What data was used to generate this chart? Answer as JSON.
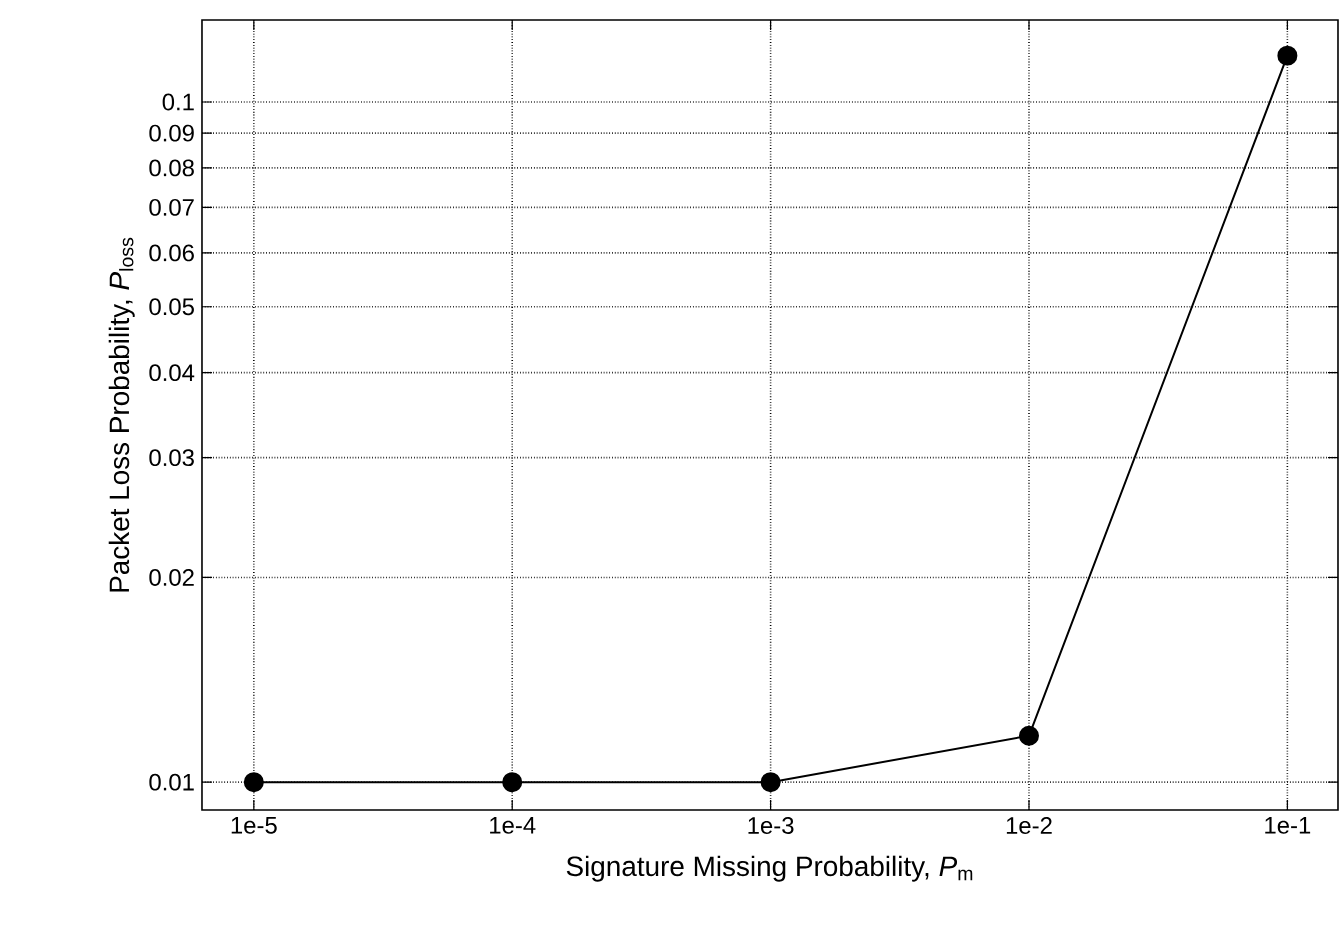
{
  "chart_data": {
    "type": "line",
    "xlabel": "Signature Missing Probability, *P*$_{m}$",
    "ylabel": "Packet Loss Probability, *P*$_{loss}$",
    "log": "xy",
    "grid": true,
    "marker": "circle",
    "line_style": "solid",
    "x": [
      1e-05,
      0.0001,
      0.001,
      0.01,
      0.1
    ],
    "series": [
      {
        "color": "#000000",
        "values": [
          0.01,
          0.01,
          0.01,
          0.0117,
          0.117
        ]
      }
    ],
    "xlim": [
      6.3e-06,
      0.157
    ],
    "ylim": [
      0.0091,
      0.132
    ],
    "xticks": [
      {
        "value": 1e-05,
        "label": "1e-5"
      },
      {
        "value": 0.0001,
        "label": "1e-4"
      },
      {
        "value": 0.001,
        "label": "1e-3"
      },
      {
        "value": 0.01,
        "label": "1e-2"
      },
      {
        "value": 0.1,
        "label": "1e-1"
      }
    ],
    "yticks": [
      0.01,
      0.02,
      0.03,
      0.04,
      0.05,
      0.06,
      0.07,
      0.08,
      0.09,
      0.1
    ]
  }
}
